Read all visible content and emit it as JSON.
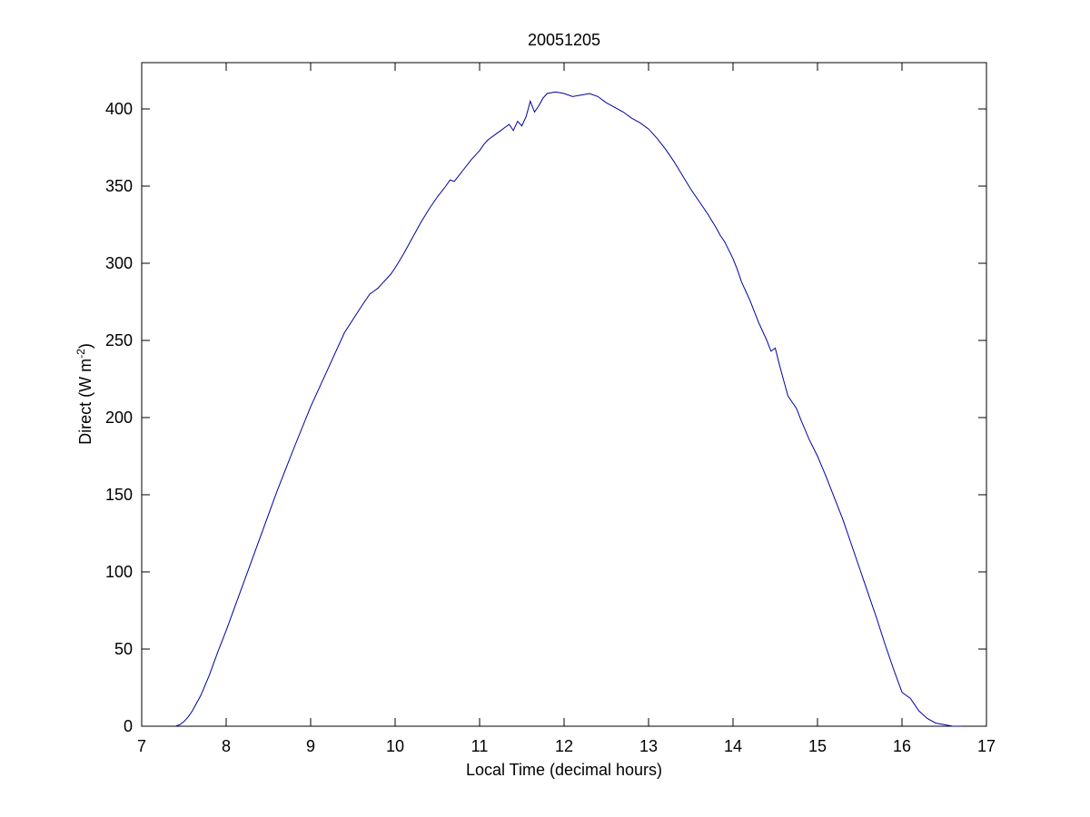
{
  "chart_data": {
    "type": "line",
    "title": "20051205",
    "xlabel": "Local Time (decimal hours)",
    "ylabel_main": "Direct (W m",
    "ylabel_sup": "-2",
    "ylabel_end": ")",
    "xlim": [
      7,
      17
    ],
    "ylim": [
      0,
      430
    ],
    "xticks": [
      7,
      8,
      9,
      10,
      11,
      12,
      13,
      14,
      15,
      16,
      17
    ],
    "yticks": [
      0,
      50,
      100,
      150,
      200,
      250,
      300,
      350,
      400
    ],
    "grid": false,
    "line_color": "#0000a0",
    "series": [
      {
        "x": [
          7.4,
          7.45,
          7.5,
          7.55,
          7.6,
          7.7,
          7.8,
          7.9,
          8.0,
          8.2,
          8.4,
          8.6,
          8.8,
          9.0,
          9.2,
          9.4,
          9.6,
          9.7,
          9.75,
          9.8,
          9.85,
          9.9,
          9.95,
          10.0,
          10.1,
          10.2,
          10.3,
          10.4,
          10.5,
          10.6,
          10.65,
          10.7,
          10.8,
          10.9,
          11.0,
          11.05,
          11.1,
          11.2,
          11.25,
          11.3,
          11.35,
          11.4,
          11.45,
          11.5,
          11.55,
          11.6,
          11.65,
          11.7,
          11.75,
          11.8,
          11.9,
          12.0,
          12.1,
          12.2,
          12.3,
          12.4,
          12.5,
          12.6,
          12.7,
          12.8,
          12.9,
          13.0,
          13.1,
          13.2,
          13.3,
          13.4,
          13.5,
          13.6,
          13.7,
          13.8,
          13.85,
          13.9,
          14.0,
          14.05,
          14.1,
          14.2,
          14.3,
          14.4,
          14.45,
          14.5,
          14.55,
          14.6,
          14.65,
          14.7,
          14.75,
          14.8,
          14.9,
          15.0,
          15.1,
          15.2,
          15.3,
          15.4,
          15.5,
          15.6,
          15.7,
          15.8,
          15.9,
          16.0,
          16.1,
          16.15,
          16.2,
          16.3,
          16.4,
          16.5,
          16.6,
          16.7
        ],
        "y": [
          0,
          1,
          3,
          6,
          10,
          20,
          33,
          48,
          62,
          92,
          122,
          152,
          180,
          207,
          231,
          255,
          272,
          280,
          282,
          284,
          287,
          290,
          293,
          297,
          306,
          316,
          326,
          335,
          343,
          350,
          354,
          353,
          360,
          367,
          373,
          377,
          380,
          384,
          386,
          388,
          390,
          386,
          392,
          389,
          395,
          405,
          398,
          402,
          407,
          410,
          411,
          410,
          408,
          409,
          410,
          408,
          404,
          401,
          398,
          394,
          391,
          387,
          381,
          374,
          366,
          357,
          348,
          340,
          332,
          323,
          318,
          314,
          303,
          296,
          288,
          276,
          262,
          250,
          243,
          245,
          234,
          224,
          214,
          210,
          206,
          199,
          186,
          175,
          162,
          148,
          134,
          118,
          102,
          86,
          70,
          53,
          37,
          22,
          18,
          14,
          10,
          5,
          2,
          1,
          0,
          0
        ]
      }
    ]
  }
}
